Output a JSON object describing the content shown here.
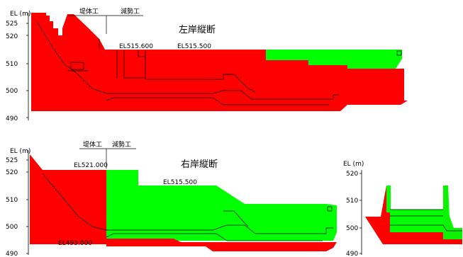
{
  "colors": {
    "red": "#ff0000",
    "green": "#00ff00",
    "line": "#000000"
  },
  "upper": {
    "title": "左岸縦断",
    "axis_unit": "EL (m)",
    "ticks": [
      "525",
      "520",
      "510",
      "500",
      "490"
    ],
    "label_teitai": "堤体工",
    "label_gensei": "減勢工",
    "el_a": "EL515.600",
    "el_b": "EL515.500"
  },
  "lower": {
    "title": "右岸縦断",
    "axis_unit": "EL (m)",
    "ticks": [
      "525",
      "520",
      "510",
      "500",
      "490"
    ],
    "label_teitai": "堤体工",
    "label_gensei": "減勢工",
    "el_top": "EL521.000",
    "el_mid": "EL515.500",
    "el_bottom": "EL493.000"
  },
  "cross": {
    "axis_unit": "EL (m)",
    "ticks": [
      "520",
      "510",
      "500",
      "490"
    ]
  }
}
